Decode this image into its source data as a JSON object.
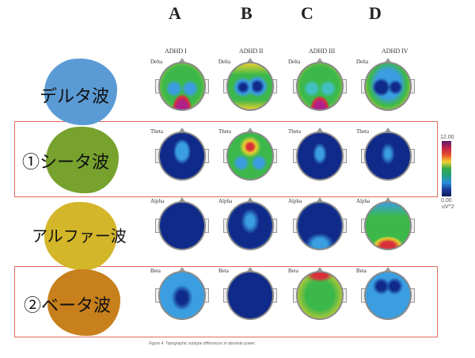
{
  "columns": [
    "A",
    "B",
    "C",
    "D"
  ],
  "subtypes": [
    "ADHD I",
    "ADHD II",
    "ADHD III",
    "ADHD IV"
  ],
  "rows": [
    {
      "label": "デルタ波",
      "band": "Delta",
      "blob_color": "#5b9bd5",
      "highlighted": false
    },
    {
      "label": "①シータ波",
      "band": "Theta",
      "blob_color": "#77a22e",
      "highlighted": true
    },
    {
      "label": "アルファー波",
      "band": "Alpha",
      "blob_color": "#d4b62a",
      "highlighted": false
    },
    {
      "label": "②ベータ波",
      "band": "Beta",
      "blob_color": "#c8801c",
      "highlighted": true
    }
  ],
  "scale": {
    "max": "12.00",
    "min": "0.00",
    "unit": "uV^2"
  },
  "caption": "Figure 4. Topographic subtype differences in absolute power.",
  "highlight_color": "#e06a5e"
}
